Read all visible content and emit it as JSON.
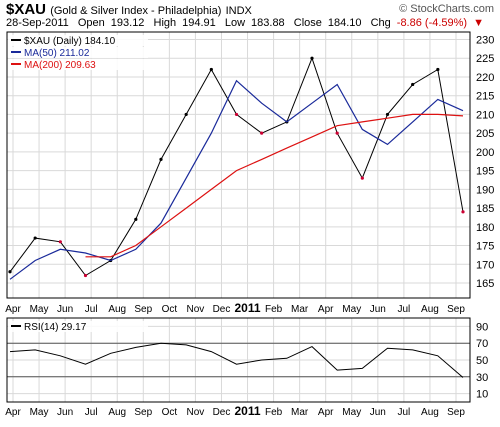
{
  "header": {
    "symbol": "$XAU",
    "name": "(Gold & Silver Index - Philadelphia)",
    "exchange": "INDX",
    "watermark": "© StockCharts.com",
    "date": "28-Sep-2011",
    "open_label": "Open",
    "open": "193.12",
    "high_label": "High",
    "high": "194.91",
    "low_label": "Low",
    "low": "183.88",
    "close_label": "Close",
    "close": "184.10",
    "chg_label": "Chg",
    "chg": "-8.86 (-4.59%)",
    "chg_arrow": "▼"
  },
  "colors": {
    "price_up": "#000000",
    "price_down": "#cc0033",
    "ma50": "#1a2a9a",
    "ma200": "#dd1111",
    "grid": "#d9d9d9",
    "border": "#000000"
  },
  "chart_data": [
    {
      "type": "line",
      "legend": [
        {
          "label": "$XAU (Daily) 184.10",
          "color": "#000000"
        },
        {
          "label": "MA(50) 211.02",
          "color": "#1a2a9a"
        },
        {
          "label": "MA(200) 209.63",
          "color": "#dd1111"
        }
      ],
      "legend_position": "top-left",
      "x_ticks": [
        "Apr",
        "May",
        "Jun",
        "Jul",
        "Aug",
        "Sep",
        "Oct",
        "Nov",
        "Dec",
        "2011",
        "Feb",
        "Mar",
        "Apr",
        "May",
        "Jun",
        "Jul",
        "Aug",
        "Sep"
      ],
      "y_ticks": [
        165,
        170,
        175,
        180,
        185,
        190,
        195,
        200,
        205,
        210,
        215,
        220,
        225,
        230
      ],
      "ylim": [
        161,
        232
      ],
      "grid": true,
      "series": [
        {
          "name": "$XAU",
          "x": [
            "Apr 2010",
            "May 2010",
            "Jun 2010",
            "Jul 2010",
            "Aug 2010",
            "Sep 2010",
            "Oct 2010",
            "Nov 2010",
            "Dec 2010",
            "Jan 2011",
            "Feb 2011",
            "Mar 2011",
            "Apr 2011",
            "May 2011",
            "Jun 2011",
            "Jul 2011",
            "Aug 2011",
            "Sep 2011",
            "28-Sep 2011"
          ],
          "values": [
            168,
            177,
            176,
            167,
            171,
            182,
            198,
            210,
            222,
            210,
            205,
            208,
            225,
            205,
            193,
            210,
            218,
            222,
            184
          ]
        },
        {
          "name": "MA(50)",
          "x": [
            "Apr 2010",
            "May 2010",
            "Jun 2010",
            "Jul 2010",
            "Aug 2010",
            "Sep 2010",
            "Oct 2010",
            "Nov 2010",
            "Dec 2010",
            "Jan 2011",
            "Feb 2011",
            "Mar 2011",
            "Apr 2011",
            "May 2011",
            "Jun 2011",
            "Jul 2011",
            "Aug 2011",
            "Sep 2011",
            "28-Sep 2011"
          ],
          "values": [
            166,
            171,
            174,
            173,
            171,
            174,
            181,
            193,
            205,
            219,
            213,
            208,
            213,
            218,
            206,
            202,
            208,
            214,
            211
          ]
        },
        {
          "name": "MA(200)",
          "x": [
            "Apr 2010",
            "May 2010",
            "Jun 2010",
            "Jul 2010",
            "Aug 2010",
            "Sep 2010",
            "Oct 2010",
            "Nov 2010",
            "Dec 2010",
            "Jan 2011",
            "Feb 2011",
            "Mar 2011",
            "Apr 2011",
            "May 2011",
            "Jun 2011",
            "Jul 2011",
            "Aug 2011",
            "Sep 2011",
            "28-Sep 2011"
          ],
          "values": [
            null,
            null,
            null,
            172,
            172,
            175,
            180,
            185,
            190,
            195,
            198,
            201,
            204,
            207,
            208,
            209,
            210,
            210,
            209.6
          ]
        }
      ]
    },
    {
      "type": "line",
      "legend": [
        {
          "label": "RSI(14) 29.17",
          "color": "#000000"
        }
      ],
      "legend_position": "top-left",
      "x_ticks": [
        "Apr",
        "May",
        "Jun",
        "Jul",
        "Aug",
        "Sep",
        "Oct",
        "Nov",
        "Dec",
        "2011",
        "Feb",
        "Mar",
        "Apr",
        "May",
        "Jun",
        "Jul",
        "Aug",
        "Sep"
      ],
      "y_ticks": [
        10,
        30,
        50,
        70,
        90
      ],
      "ylim": [
        0,
        100
      ],
      "reference_lines": [
        30,
        70
      ],
      "grid": true,
      "series": [
        {
          "name": "RSI(14)",
          "x": [
            "Apr 2010",
            "May 2010",
            "Jun 2010",
            "Jul 2010",
            "Aug 2010",
            "Sep 2010",
            "Oct 2010",
            "Nov 2010",
            "Dec 2010",
            "Jan 2011",
            "Feb 2011",
            "Mar 2011",
            "Apr 2011",
            "May 2011",
            "Jun 2011",
            "Jul 2011",
            "Aug 2011",
            "Sep 2011",
            "28-Sep 2011"
          ],
          "values": [
            60,
            62,
            55,
            45,
            58,
            65,
            70,
            68,
            60,
            45,
            50,
            52,
            66,
            38,
            40,
            64,
            62,
            55,
            29.17
          ]
        }
      ]
    }
  ]
}
